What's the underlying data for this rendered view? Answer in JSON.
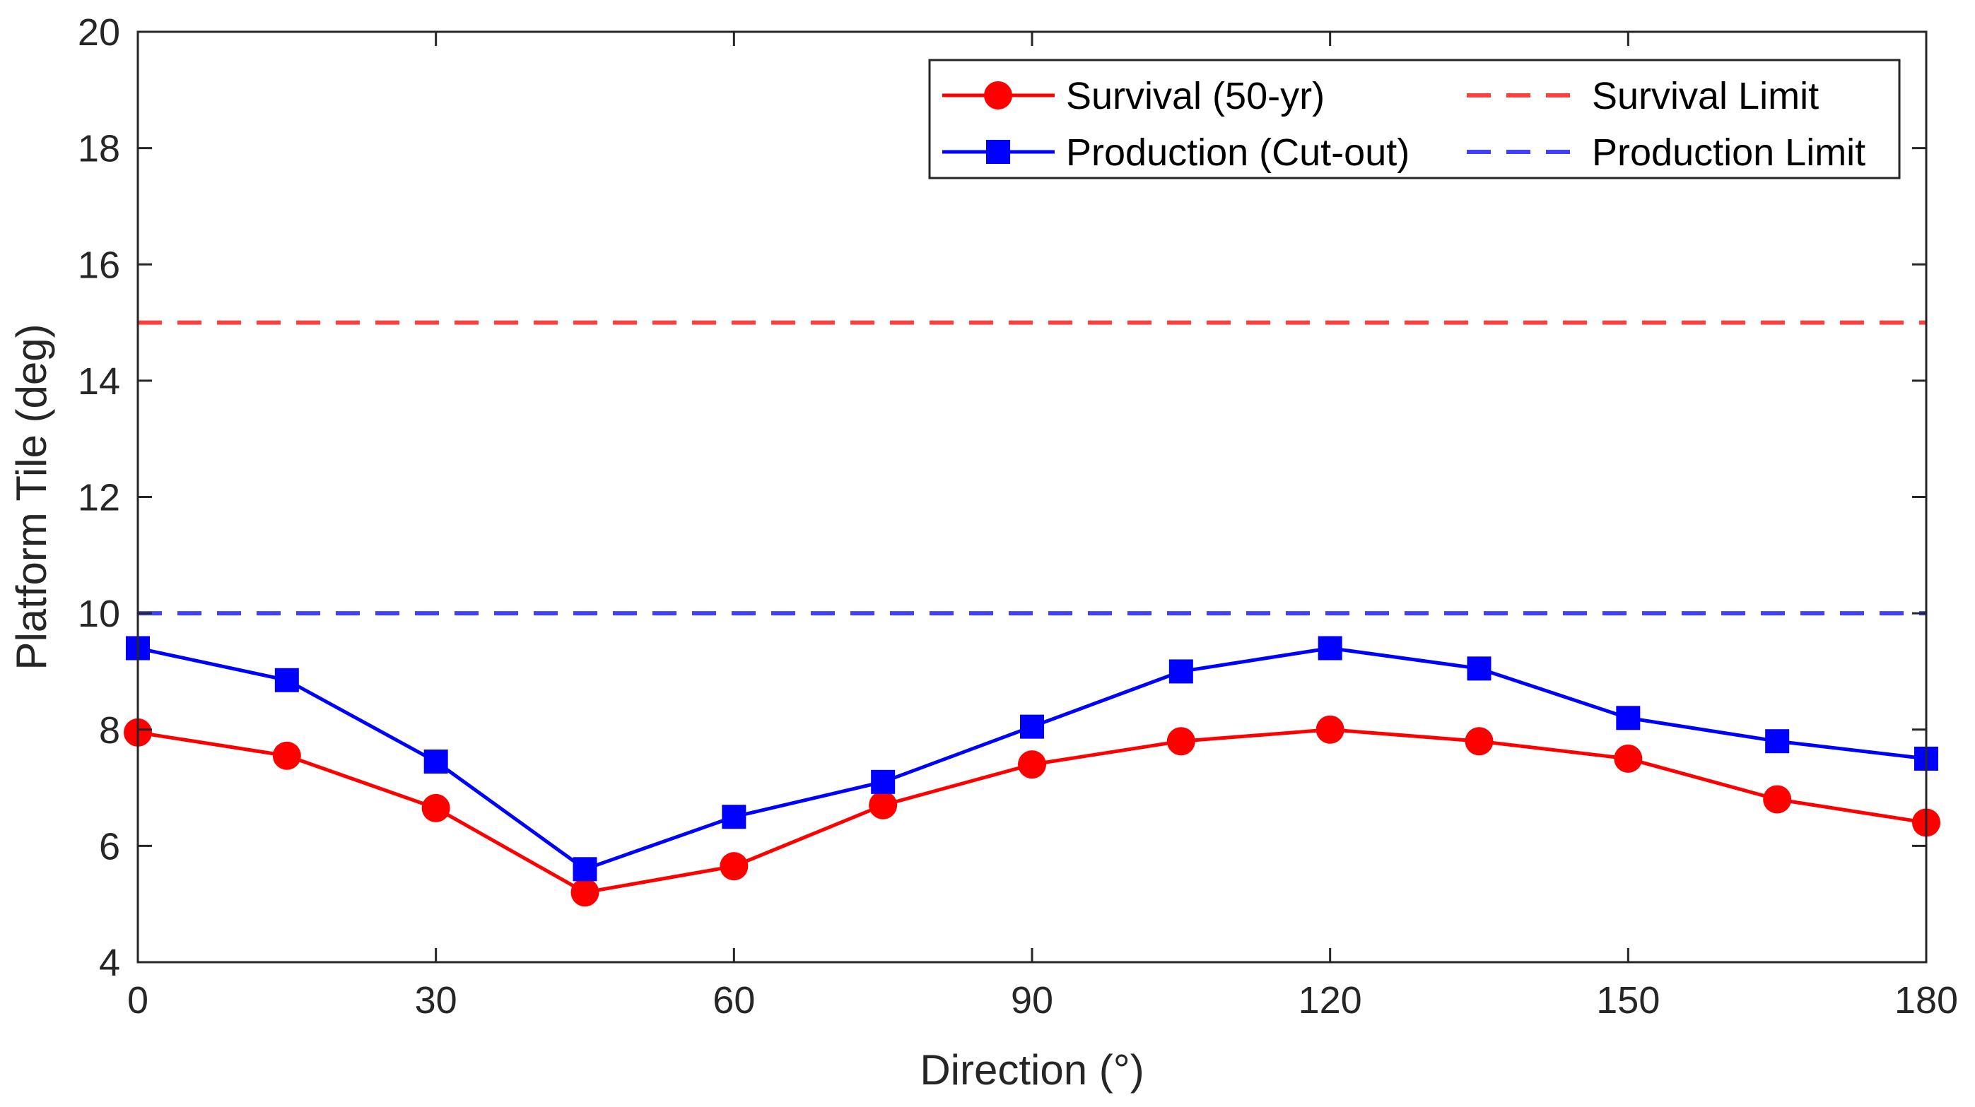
{
  "chart_data": {
    "type": "line",
    "title": "",
    "xlabel": "Direction (°)",
    "ylabel": "Platform Tile (deg)",
    "xlim": [
      0,
      180
    ],
    "ylim": [
      4,
      20
    ],
    "xticks": [
      0,
      30,
      60,
      90,
      120,
      150,
      180
    ],
    "yticks": [
      4,
      6,
      8,
      10,
      12,
      14,
      16,
      18,
      20
    ],
    "grid": false,
    "legend_position": "top-right",
    "x": [
      0,
      15,
      30,
      45,
      60,
      75,
      90,
      105,
      120,
      135,
      150,
      165,
      180
    ],
    "series": [
      {
        "name": "Survival (50-yr)",
        "color": "#ff0000",
        "marker": "circle",
        "line": "solid",
        "values": [
          7.95,
          7.55,
          6.65,
          5.2,
          5.65,
          6.7,
          7.4,
          7.8,
          8.0,
          7.8,
          7.5,
          6.8,
          6.4
        ]
      },
      {
        "name": "Production (Cut-out)",
        "color": "#0000ff",
        "marker": "square",
        "line": "solid",
        "values": [
          9.4,
          8.85,
          7.45,
          5.6,
          6.5,
          7.1,
          8.05,
          9.0,
          9.4,
          9.05,
          8.2,
          7.8,
          7.5
        ]
      }
    ],
    "reference_lines": [
      {
        "name": "Survival Limit",
        "value": 15,
        "color": "#ff4040",
        "line": "dashed"
      },
      {
        "name": "Production Limit",
        "value": 10,
        "color": "#4040ff",
        "line": "dashed"
      }
    ]
  }
}
